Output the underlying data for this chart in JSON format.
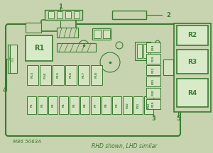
{
  "bg_color": "#c8d4b0",
  "green": "#3a7a30",
  "fuse_fill": "#d4e4c0",
  "relay_fill": "#d8eac8",
  "title": "RHD shown, LHD similar",
  "subtitle": "M86 5063A",
  "fuse_top_labels": [
    "F13",
    "F14",
    "F15",
    "F16",
    "F17",
    "F18"
  ],
  "fuse_bot_labels": [
    "F1",
    "F2",
    "F3",
    "F4",
    "F5",
    "F6",
    "F7",
    "F8",
    "F9",
    "F10",
    "F11",
    "F12"
  ],
  "fuse_right_labels": [
    "F24",
    "F23",
    "F22",
    "F21",
    "F20",
    "F19"
  ],
  "fuse_left_label": "F20"
}
